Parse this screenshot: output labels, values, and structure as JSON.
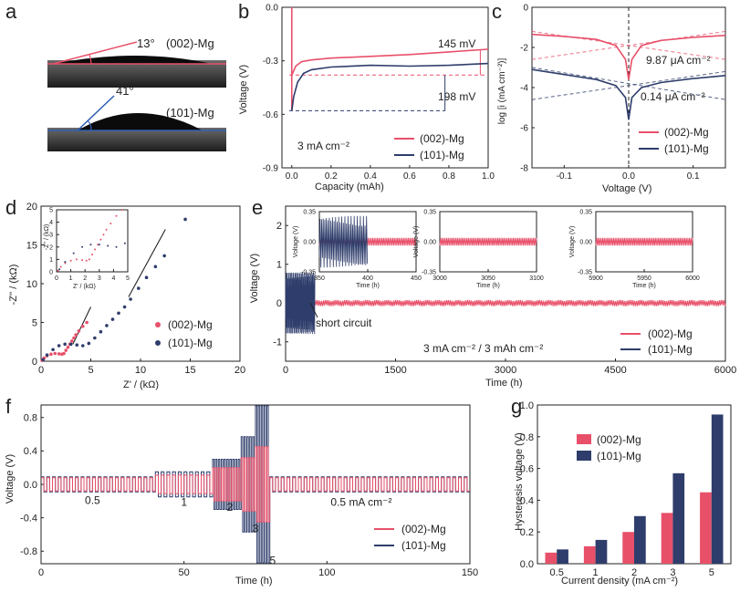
{
  "colors": {
    "red": "#e8506a",
    "blue": "#2e3d6b",
    "black": "#111111"
  },
  "chart_data": [
    {
      "panel": "a",
      "type": "image",
      "annotations": [
        {
          "label": "13°",
          "sample": "(002)-Mg"
        },
        {
          "label": "41°",
          "sample": "(101)-Mg"
        }
      ]
    },
    {
      "panel": "b",
      "type": "line",
      "xlabel": "Capacity (mAh)",
      "ylabel": "Voltage (V)",
      "xlim": [
        -0.05,
        1.0
      ],
      "ylim": [
        -0.9,
        0.0
      ],
      "xticks": [
        "0.0",
        "0.2",
        "0.4",
        "0.6",
        "0.8",
        "1.0"
      ],
      "yticks": [
        "-0.9",
        "-0.6",
        "-0.3",
        "0.0"
      ],
      "note": "3 mA cm⁻²",
      "annotations": [
        "145 mV",
        "198 mV"
      ],
      "series": [
        {
          "name": "(002)-Mg",
          "x": [
            0.0,
            0.02,
            0.05,
            0.1,
            0.2,
            0.4,
            0.6,
            0.8,
            1.0
          ],
          "y": [
            -0.38,
            -0.33,
            -0.305,
            -0.295,
            -0.285,
            -0.275,
            -0.265,
            -0.25,
            -0.235
          ]
        },
        {
          "name": "(101)-Mg",
          "x": [
            0.0,
            0.01,
            0.03,
            0.06,
            0.1,
            0.2,
            0.4,
            0.6,
            0.8,
            1.0
          ],
          "y": [
            -0.58,
            -0.5,
            -0.42,
            -0.37,
            -0.35,
            -0.335,
            -0.325,
            -0.33,
            -0.325,
            -0.315
          ]
        }
      ]
    },
    {
      "panel": "c",
      "type": "line",
      "xlabel": "Voltage (V)",
      "ylabel": "log [i (mA cm⁻²)]",
      "xlim": [
        -0.15,
        0.15
      ],
      "ylim": [
        -8,
        0
      ],
      "xticks": [
        "-0.1",
        "0.0",
        "0.1"
      ],
      "yticks": [
        "-8",
        "-6",
        "-4",
        "-2",
        "0"
      ],
      "annotations": [
        "9.87 μA cm⁻²",
        "0.14 μA cm⁻²"
      ],
      "series": [
        {
          "name": "(002)-Mg",
          "x": [
            -0.15,
            -0.1,
            -0.05,
            -0.02,
            -0.005,
            0.0,
            0.005,
            0.02,
            0.05,
            0.1,
            0.15
          ],
          "y": [
            -1.35,
            -1.45,
            -1.6,
            -1.9,
            -2.6,
            -3.6,
            -2.6,
            -1.9,
            -1.65,
            -1.5,
            -1.4
          ]
        },
        {
          "name": "(101)-Mg",
          "x": [
            -0.15,
            -0.1,
            -0.05,
            -0.02,
            -0.005,
            0.0,
            0.005,
            0.02,
            0.05,
            0.1,
            0.15
          ],
          "y": [
            -3.1,
            -3.35,
            -3.6,
            -3.9,
            -4.5,
            -5.6,
            -4.5,
            -4.0,
            -3.75,
            -3.55,
            -3.4
          ]
        }
      ]
    },
    {
      "panel": "d",
      "type": "scatter",
      "xlabel": "Z' / (kΩ)",
      "ylabel": "-Z'' / (kΩ)",
      "xlim": [
        0,
        20
      ],
      "ylim": [
        0,
        20
      ],
      "xticks": [
        "0",
        "5",
        "10",
        "15",
        "20"
      ],
      "yticks": [
        "0",
        "5",
        "10",
        "15",
        "20"
      ],
      "inset": {
        "xlabel": "Z' / (kΩ)",
        "ylabel": "-Z'' / (kΩ)",
        "xticks": [
          "0",
          "1",
          "2",
          "3",
          "4",
          "5"
        ],
        "yticks": [
          "0",
          "1",
          "2",
          "3",
          "4",
          "5"
        ]
      },
      "series": [
        {
          "name": "(002)-Mg",
          "x": [
            0.1,
            0.3,
            0.6,
            1.0,
            1.4,
            1.8,
            2.1,
            2.3,
            2.5,
            2.7,
            2.9,
            3.1,
            3.3,
            3.5,
            3.8,
            4.2,
            4.6
          ],
          "y": [
            0.1,
            0.4,
            0.7,
            0.9,
            1.0,
            0.95,
            0.9,
            1.0,
            1.4,
            1.8,
            2.2,
            2.6,
            3.0,
            3.4,
            3.9,
            4.5,
            5.0
          ]
        },
        {
          "name": "(101)-Mg",
          "x": [
            0.2,
            0.6,
            1.2,
            1.8,
            2.4,
            3.0,
            3.6,
            4.2,
            4.8,
            5.4,
            6.0,
            6.6,
            7.2,
            7.8,
            8.4,
            9.0,
            9.8,
            10.6,
            11.5,
            12.4,
            14.5
          ],
          "y": [
            0.2,
            0.8,
            1.5,
            2.0,
            2.2,
            2.2,
            2.1,
            2.0,
            2.3,
            3.0,
            3.8,
            4.6,
            5.4,
            6.2,
            7.0,
            8.0,
            9.4,
            10.8,
            12.2,
            13.6,
            18.3
          ]
        }
      ]
    },
    {
      "panel": "e",
      "type": "line",
      "xlabel": "Time (h)",
      "ylabel": "Voltage (V)",
      "xlim": [
        0,
        6000
      ],
      "ylim": [
        -1.5,
        2.5
      ],
      "xticks": [
        "0",
        "1500",
        "3000",
        "4500",
        "6000"
      ],
      "yticks": [
        "-1",
        "0",
        "1",
        "2"
      ],
      "note": "3 mA cm⁻² / 3 mAh cm⁻²",
      "annotation": "short circuit",
      "insets": [
        {
          "xlim": [
            350,
            450
          ],
          "xticks": [
            "350",
            "400",
            "450"
          ],
          "yticks": [
            "-0.35",
            "0.00",
            "0.35"
          ],
          "xlabel": "Time (h)",
          "ylabel": "Voltage (V)"
        },
        {
          "xlim": [
            3000,
            3100
          ],
          "xticks": [
            "3000",
            "3050",
            "3100"
          ],
          "yticks": [
            "-0.35",
            "0.00",
            "0.35"
          ],
          "xlabel": "Time (h)",
          "ylabel": "Voltage (V)"
        },
        {
          "xlim": [
            5900,
            6000
          ],
          "xticks": [
            "5900",
            "5950",
            "6000"
          ],
          "yticks": [
            "-0.35",
            "0.00",
            "0.35"
          ],
          "xlabel": "Time (h)",
          "ylabel": "Voltage (V)"
        }
      ],
      "series": [
        {
          "name": "(002)-Mg",
          "amplitude": 0.08,
          "x_end": 6000
        },
        {
          "name": "(101)-Mg",
          "amplitude": 0.8,
          "x_end": 400
        }
      ]
    },
    {
      "panel": "f",
      "type": "line",
      "xlabel": "Time (h)",
      "ylabel": "Voltage (V)",
      "xlim": [
        0,
        150
      ],
      "ylim": [
        -0.95,
        0.95
      ],
      "xticks": [
        "0",
        "50",
        "100",
        "150"
      ],
      "yticks": [
        "-0.8",
        "-0.4",
        "0.0",
        "0.4",
        "0.8"
      ],
      "step_labels": [
        "0.5",
        "1",
        "2",
        "3",
        "5",
        "0.5 mA cm⁻²"
      ],
      "segments": [
        {
          "current": 0.5,
          "start": 0,
          "end": 40,
          "amp_002": 0.08,
          "amp_101": 0.09
        },
        {
          "current": 1,
          "start": 40,
          "end": 60,
          "amp_002": 0.11,
          "amp_101": 0.15
        },
        {
          "current": 2,
          "start": 60,
          "end": 70,
          "amp_002": 0.2,
          "amp_101": 0.3
        },
        {
          "current": 3,
          "start": 70,
          "end": 75,
          "amp_002": 0.32,
          "amp_101": 0.57
        },
        {
          "current": 5,
          "start": 75,
          "end": 80,
          "amp_002": 0.45,
          "amp_101": 0.94
        },
        {
          "current": 0.5,
          "start": 80,
          "end": 150,
          "amp_002": 0.08,
          "amp_101": 0.09
        }
      ],
      "series": [
        {
          "name": "(002)-Mg"
        },
        {
          "name": "(101)-Mg"
        }
      ]
    },
    {
      "panel": "g",
      "type": "bar",
      "xlabel": "Current density (mA cm⁻²)",
      "ylabel": "Hysteresis voltage (V)",
      "ylim": [
        0,
        1.0
      ],
      "yticks": [
        "0.0",
        "0.2",
        "0.4",
        "0.6",
        "0.8",
        "1.0"
      ],
      "categories": [
        "0.5",
        "1",
        "2",
        "3",
        "5"
      ],
      "series": [
        {
          "name": "(002)-Mg",
          "values": [
            0.07,
            0.11,
            0.2,
            0.32,
            0.45
          ]
        },
        {
          "name": "(101)-Mg",
          "values": [
            0.09,
            0.15,
            0.3,
            0.57,
            0.94
          ]
        }
      ]
    }
  ]
}
